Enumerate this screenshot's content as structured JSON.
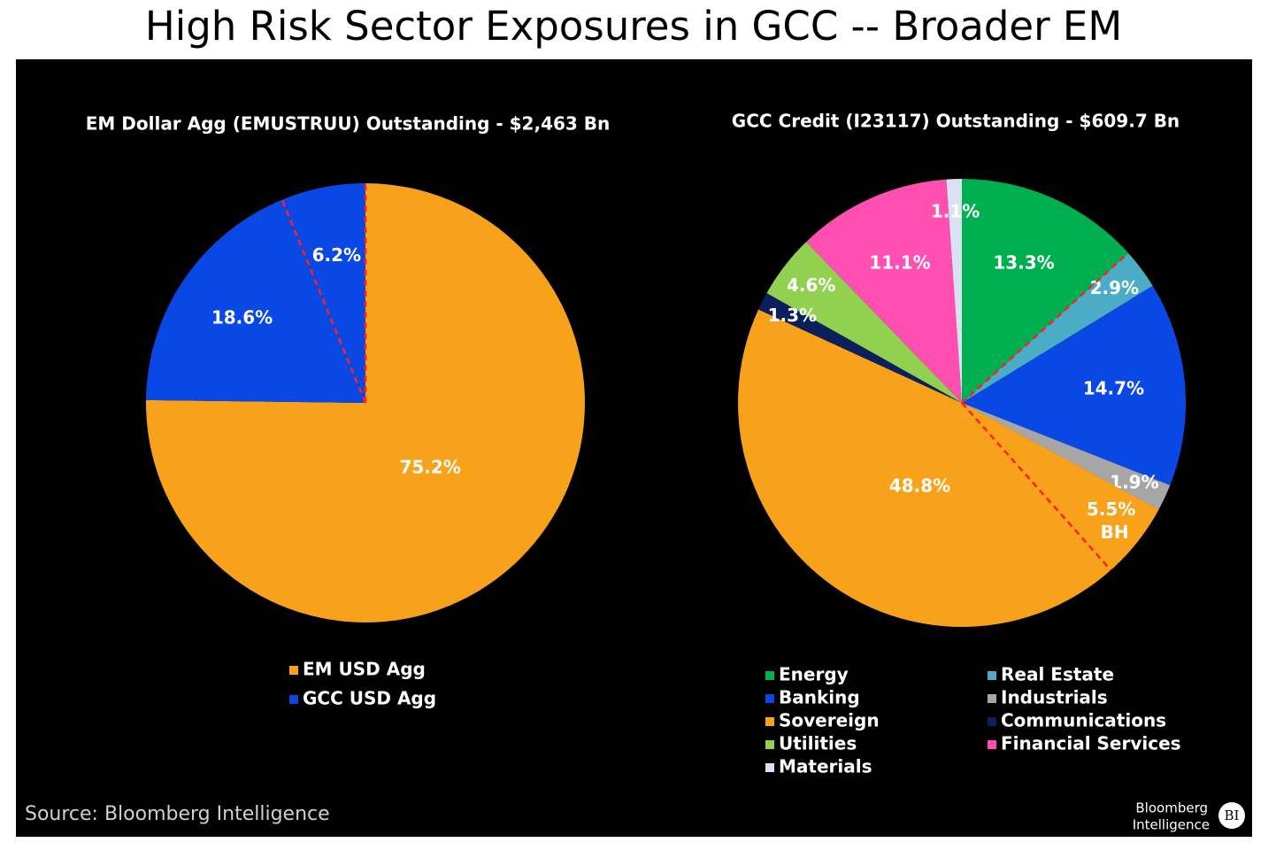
{
  "header": {
    "title": "High Risk Sector Exposures in GCC -- Broader EM"
  },
  "chart_data": [
    {
      "type": "pie",
      "title": "EM Dollar Agg (EMUSTRUU) Outstanding - $2,463 Bn",
      "legend_columns": 1,
      "series": [
        {
          "name": "EM USD Agg",
          "color": "#f8a11b",
          "values": [
            75.2
          ],
          "value_labels": [
            "75.2%"
          ]
        },
        {
          "name": "GCC USD Agg",
          "color": "#0a48e6",
          "values": [
            18.6,
            6.2
          ],
          "value_labels": [
            "18.6%",
            "6.2%"
          ]
        }
      ]
    },
    {
      "type": "pie",
      "title": "GCC Credit (I23117) Outstanding - $609.7 Bn",
      "legend_columns": 2,
      "highlight": {
        "from": "Real Estate",
        "to": "BH"
      },
      "series": [
        {
          "name": "Energy",
          "color": "#00b050",
          "values": [
            13.3
          ],
          "value_labels": [
            "13.3%"
          ]
        },
        {
          "name": "Real Estate",
          "color": "#4bacc6",
          "values": [
            2.9
          ],
          "value_labels": [
            "2.9%"
          ]
        },
        {
          "name": "Banking",
          "color": "#0a48e6",
          "values": [
            14.7
          ],
          "value_labels": [
            "14.7%"
          ]
        },
        {
          "name": "Industrials",
          "color": "#a6a6a6",
          "values": [
            1.9
          ],
          "value_labels": [
            "1.9%"
          ]
        },
        {
          "name": "Sovereign",
          "color": "#f8a11b",
          "values": [
            48.8
          ],
          "value_labels": [
            "48.8%"
          ],
          "part": {
            "value": 5.5,
            "value_label": "5.5%",
            "label": "BH"
          }
        },
        {
          "name": "Communications",
          "color": "#0b1f5c",
          "values": [
            1.3
          ],
          "value_labels": [
            "1.3%"
          ]
        },
        {
          "name": "Utilities",
          "color": "#92d050",
          "values": [
            4.6
          ],
          "value_labels": [
            "4.6%"
          ]
        },
        {
          "name": "Financial Services",
          "color": "#ff4fb0",
          "values": [
            11.1
          ],
          "value_labels": [
            "11.1%"
          ]
        },
        {
          "name": "Materials",
          "color": "#d9e1f2",
          "values": [
            1.1
          ],
          "value_labels": [
            "1.1%"
          ]
        }
      ]
    }
  ],
  "footer": {
    "source": "Source: Bloomberg Intelligence",
    "logo": [
      "Bloomberg",
      "Intelligence"
    ],
    "badge": "BI"
  }
}
